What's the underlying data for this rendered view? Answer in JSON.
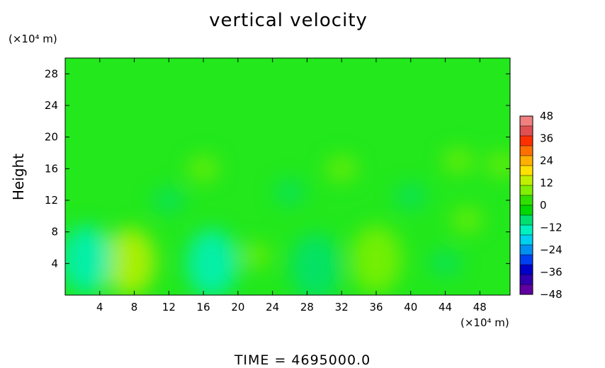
{
  "chart_data": {
    "type": "heatmap",
    "title": "vertical velocity",
    "ylabel": "Height",
    "xunit_label": "(×10⁴ m)",
    "yunit_label": "(×10⁴ m)",
    "footer": "TIME = 4695000.0",
    "xlim": [
      0,
      51.5
    ],
    "ylim": [
      0,
      30
    ],
    "xticks": [
      4,
      8,
      12,
      16,
      20,
      24,
      28,
      32,
      36,
      40,
      44,
      48
    ],
    "yticks": [
      4,
      8,
      12,
      16,
      20,
      24,
      28
    ],
    "colorbar": {
      "min": -48,
      "max": 48,
      "step": 6,
      "labels": [
        48,
        36,
        24,
        12,
        0,
        -12,
        -24,
        -36,
        -48
      ],
      "colors": [
        "#f08080",
        "#e05050",
        "#ff3000",
        "#ff7000",
        "#ffb000",
        "#ffe000",
        "#c0f000",
        "#80f000",
        "#30e000",
        "#00d800",
        "#00e070",
        "#00f0c0",
        "#00d0f0",
        "#0090f0",
        "#0040f0",
        "#0000c8",
        "#3000b0",
        "#6000a0"
      ]
    },
    "features": [
      {
        "x": 7.5,
        "y": 4.2,
        "value": 16
      },
      {
        "x": 2.5,
        "y": 4.5,
        "value": -12
      },
      {
        "x": 17,
        "y": 4,
        "value": -12
      },
      {
        "x": 22,
        "y": 5,
        "value": 8
      },
      {
        "x": 29,
        "y": 3.5,
        "value": -10
      },
      {
        "x": 36,
        "y": 4.5,
        "value": 10
      },
      {
        "x": 44,
        "y": 4,
        "value": -8
      },
      {
        "x": 46.5,
        "y": 9.5,
        "value": 8
      },
      {
        "x": 16,
        "y": 16,
        "value": 8
      },
      {
        "x": 32,
        "y": 16,
        "value": 7
      },
      {
        "x": 45.5,
        "y": 17,
        "value": 8
      },
      {
        "x": 50.5,
        "y": 16.5,
        "value": 7
      },
      {
        "x": 12,
        "y": 12,
        "value": -6
      },
      {
        "x": 26,
        "y": 13,
        "value": -6
      },
      {
        "x": 40,
        "y": 12.5,
        "value": -6
      }
    ]
  }
}
